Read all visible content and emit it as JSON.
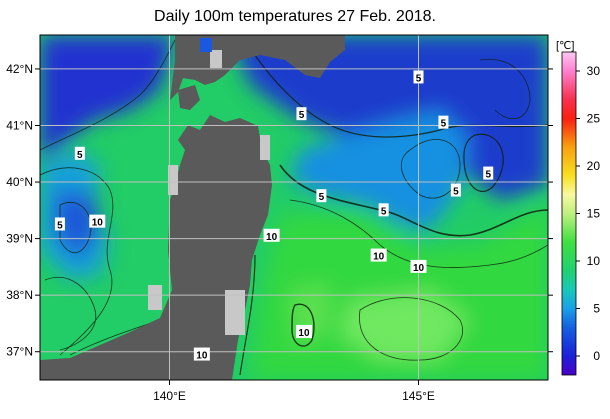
{
  "title": "Daily 100m temperatures 27 Feb. 2018.",
  "map": {
    "lon_range": [
      137.4,
      147.6
    ],
    "lat_range": [
      36.5,
      42.6
    ],
    "lon_ticks": [
      {
        "value": 140,
        "label": "140°E"
      },
      {
        "value": 145,
        "label": "145°E"
      }
    ],
    "lat_ticks": [
      {
        "value": 42,
        "label": "42°N"
      },
      {
        "value": 41,
        "label": "41°N"
      },
      {
        "value": 40,
        "label": "40°N"
      },
      {
        "value": 39,
        "label": "39°N"
      },
      {
        "value": 38,
        "label": "38°N"
      },
      {
        "value": 37,
        "label": "37°N"
      }
    ],
    "land_color": "#5a5a5a",
    "no_data_color": "#c8c8c8",
    "grid_color": "#c0c0c0",
    "contour_interval": 1
  },
  "colorbar": {
    "unit": "[℃]",
    "range": [
      -2,
      32
    ],
    "ticks": [
      30,
      25,
      20,
      15,
      10,
      5,
      0
    ],
    "stops": [
      {
        "value": -2,
        "color": "#4b00c8"
      },
      {
        "value": 0,
        "color": "#1b20d8"
      },
      {
        "value": 3,
        "color": "#1560e0"
      },
      {
        "value": 5,
        "color": "#1aa0e8"
      },
      {
        "value": 7,
        "color": "#18c8b8"
      },
      {
        "value": 9,
        "color": "#20d070"
      },
      {
        "value": 12,
        "color": "#40e040"
      },
      {
        "value": 15,
        "color": "#c0f080"
      },
      {
        "value": 17,
        "color": "#f8f8a0"
      },
      {
        "value": 19,
        "color": "#f8e020"
      },
      {
        "value": 22,
        "color": "#f8a010"
      },
      {
        "value": 25,
        "color": "#f82010"
      },
      {
        "value": 27,
        "color": "#f83050"
      },
      {
        "value": 30,
        "color": "#ff80d0"
      },
      {
        "value": 32,
        "color": "#ffc8f0"
      }
    ]
  },
  "contour_labels": [
    {
      "text": "5",
      "lon": 138.2,
      "lat": 40.5
    },
    {
      "text": "5",
      "lon": 137.8,
      "lat": 39.25
    },
    {
      "text": "10",
      "lon": 138.55,
      "lat": 39.3
    },
    {
      "text": "5",
      "lon": 142.65,
      "lat": 41.2
    },
    {
      "text": "5",
      "lon": 145.0,
      "lat": 41.85
    },
    {
      "text": "5",
      "lon": 145.5,
      "lat": 41.05
    },
    {
      "text": "5",
      "lon": 143.05,
      "lat": 39.75
    },
    {
      "text": "5",
      "lon": 144.3,
      "lat": 39.5
    },
    {
      "text": "5",
      "lon": 145.75,
      "lat": 39.85
    },
    {
      "text": "5",
      "lon": 146.4,
      "lat": 40.15
    },
    {
      "text": "10",
      "lon": 142.05,
      "lat": 39.05
    },
    {
      "text": "10",
      "lon": 144.2,
      "lat": 38.7
    },
    {
      "text": "10",
      "lon": 145.0,
      "lat": 38.5
    },
    {
      "text": "10",
      "lon": 142.7,
      "lat": 37.35
    },
    {
      "text": "10",
      "lon": 140.65,
      "lat": 36.95
    }
  ]
}
